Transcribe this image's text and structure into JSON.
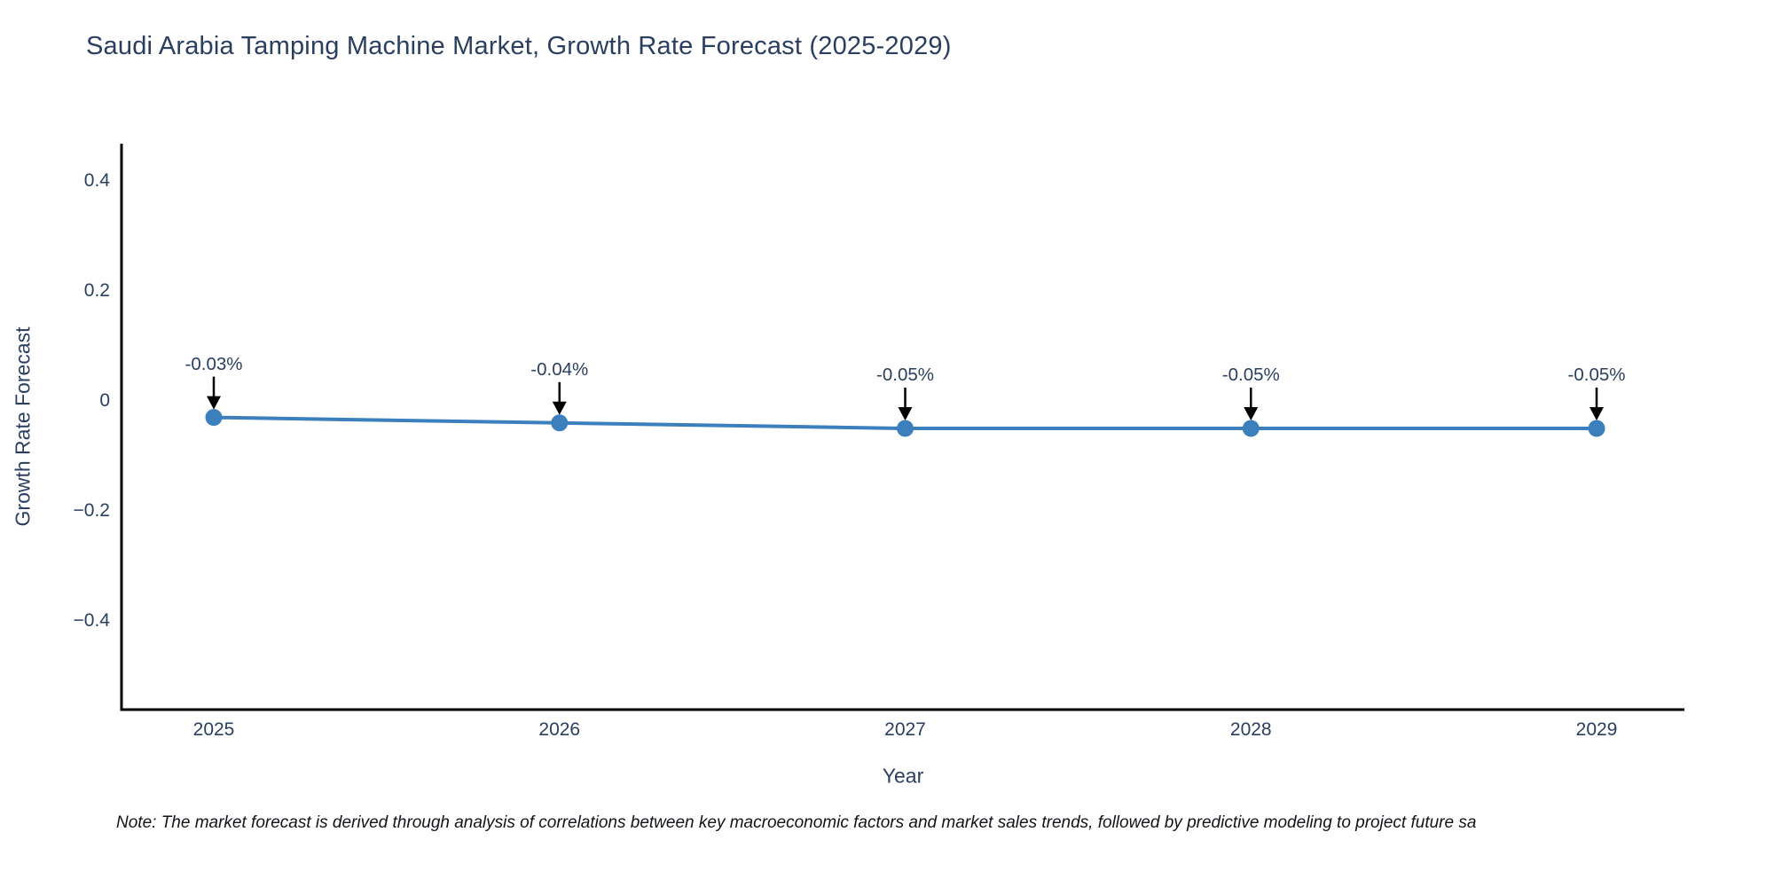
{
  "title": "Saudi Arabia Tamping Machine Market, Growth Rate Forecast (2025-2029)",
  "note": "Note: The market forecast is derived through analysis of correlations between key macroeconomic factors and market sales trends, followed by predictive modeling to project future sa",
  "chart_data": {
    "type": "line",
    "title": "Saudi Arabia Tamping Machine Market, Growth Rate Forecast (2025-2029)",
    "xlabel": "Year",
    "ylabel": "Growth Rate Forecast",
    "categories": [
      "2025",
      "2026",
      "2027",
      "2028",
      "2029"
    ],
    "series": [
      {
        "name": "Growth Rate Forecast",
        "values": [
          -0.03,
          -0.04,
          -0.05,
          -0.05,
          -0.05
        ],
        "point_labels": [
          "-0.03%",
          "-0.04%",
          "-0.05%",
          "-0.05%",
          "-0.05%"
        ]
      }
    ],
    "y_ticks": [
      0.4,
      0.2,
      0,
      -0.2,
      -0.4
    ],
    "y_tick_labels": [
      "0.4",
      "0.2",
      "0",
      "−0.2",
      "−0.4"
    ],
    "ylim": [
      -0.58,
      0.47
    ],
    "grid": false,
    "legend_position": "none",
    "colors": {
      "line": "#3c7fbd",
      "marker": "#3c7fbd",
      "arrow": "#000000",
      "axis": "#000000",
      "text": "#2a3f5f"
    }
  }
}
